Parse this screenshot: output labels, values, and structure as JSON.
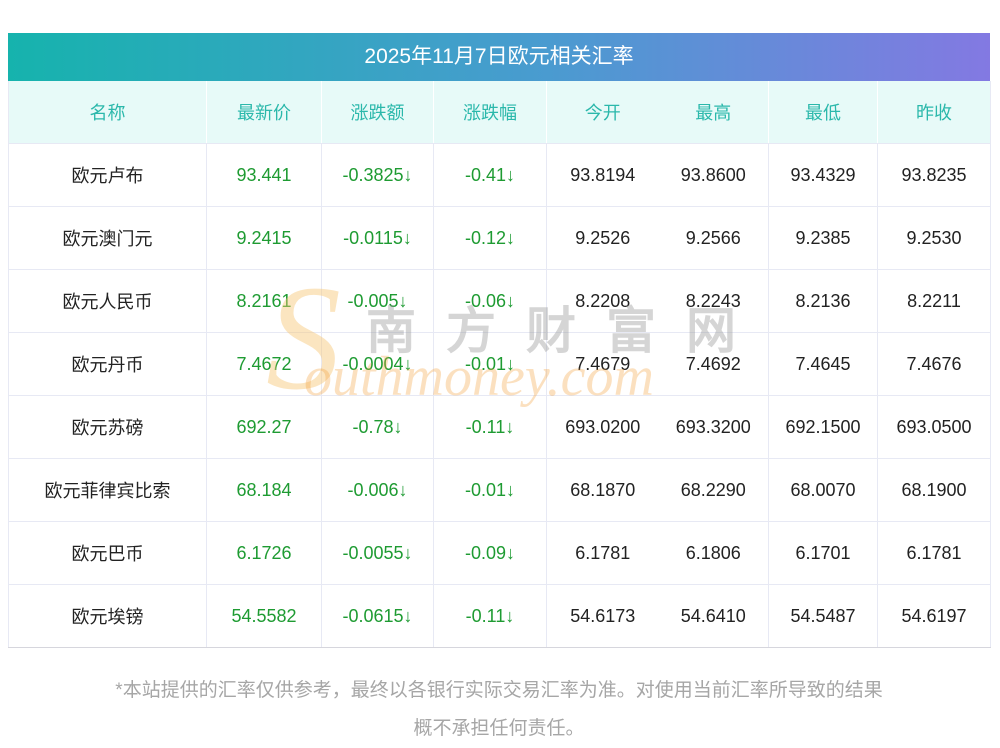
{
  "title": "2025年11月7日欧元相关汇率",
  "chart_data": {
    "type": "table",
    "title": "2025年11月7日欧元相关汇率",
    "columns": [
      "名称",
      "最新价",
      "涨跌额",
      "涨跌幅",
      "今开",
      "最高",
      "最低",
      "昨收"
    ],
    "rows": [
      [
        "欧元卢布",
        "93.441",
        "-0.3825↓",
        "-0.41↓",
        "93.8194",
        "93.8600",
        "93.4329",
        "93.8235"
      ],
      [
        "欧元澳门元",
        "9.2415",
        "-0.0115↓",
        "-0.12↓",
        "9.2526",
        "9.2566",
        "9.2385",
        "9.2530"
      ],
      [
        "欧元人民币",
        "8.2161",
        "-0.005↓",
        "-0.06↓",
        "8.2208",
        "8.2243",
        "8.2136",
        "8.2211"
      ],
      [
        "欧元丹币",
        "7.4672",
        "-0.0004↓",
        "-0.01↓",
        "7.4679",
        "7.4692",
        "7.4645",
        "7.4676"
      ],
      [
        "欧元苏磅",
        "692.27",
        "-0.78↓",
        "-0.11↓",
        "693.0200",
        "693.3200",
        "692.1500",
        "693.0500"
      ],
      [
        "欧元菲律宾比索",
        "68.184",
        "-0.006↓",
        "-0.01↓",
        "68.1870",
        "68.2290",
        "68.0070",
        "68.1900"
      ],
      [
        "欧元巴币",
        "6.1726",
        "-0.0055↓",
        "-0.09↓",
        "6.1781",
        "6.1806",
        "6.1701",
        "6.1781"
      ],
      [
        "欧元埃镑",
        "54.5582",
        "-0.0615↓",
        "-0.11↓",
        "54.6173",
        "54.6410",
        "54.5487",
        "54.6197"
      ]
    ],
    "direction_note": "all changes negative, shown green with down arrow"
  },
  "watermark": {
    "s": "S",
    "cn": "南方财富网",
    "en": "outhmoney.com"
  },
  "footer": {
    "line1": "*本站提供的汇率仅供参考，最终以各银行实际交易汇率为准。对使用当前汇率所导致的结果",
    "line2": "概不承担任何责任。"
  },
  "colors": {
    "title_gradient_start": "#16b3ad",
    "title_gradient_end": "#8379e2",
    "header_bg": "#e7faf8",
    "header_text": "#2bb8ab",
    "down_green": "#1e9b32",
    "body_text": "#222222",
    "grid_line": "#e7e9f4",
    "footer_text": "#a6a6a6",
    "watermark_orange": "#f39f39",
    "watermark_gray": "#969696"
  }
}
